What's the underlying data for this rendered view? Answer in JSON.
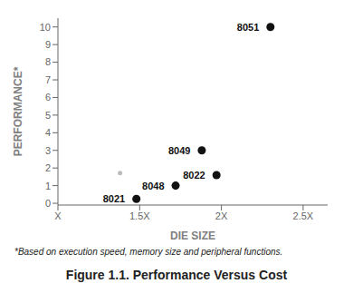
{
  "chart_data": {
    "type": "scatter",
    "title": "Figure 1.1.  Performance Versus Cost",
    "x_label": "DIE SIZE",
    "y_label": "PERFORMANCE*",
    "annotations": [
      "*Based on execution speed, memory size and peripheral functions."
    ],
    "series": [
      {
        "color": "#111111",
        "x": [
          2.3,
          1.88,
          1.97,
          1.72,
          1.48
        ],
        "values": [
          10.0,
          3.0,
          1.6,
          1.0,
          0.25
        ],
        "labels": [
          "8051",
          "8049",
          "8022",
          "8048",
          "8021"
        ]
      },
      {
        "color": "#bbbbbb",
        "x": [
          1.38
        ],
        "values": [
          1.72
        ]
      }
    ],
    "xlim": [
      1.0,
      2.65
    ],
    "ylim": [
      -0.1,
      10.5
    ],
    "xticks": [
      {
        "value": 1.0,
        "label": "X"
      },
      {
        "value": 1.5,
        "label": "1.5X"
      },
      {
        "value": 2.0,
        "label": "2X"
      },
      {
        "value": 2.5,
        "label": "2.5X"
      }
    ],
    "yticks": [
      0,
      1,
      2,
      3,
      4,
      5,
      6,
      7,
      8,
      9,
      10
    ],
    "grid": false
  }
}
